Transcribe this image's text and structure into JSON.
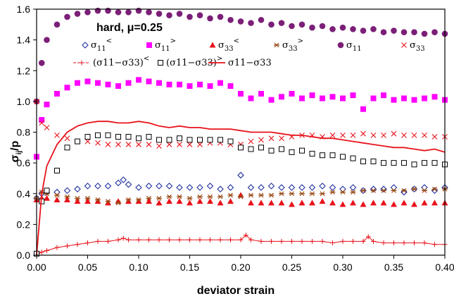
{
  "chart_data": {
    "type": "scatter",
    "annotation": "hard, μ=0.25",
    "xlabel": "deviator strain",
    "ylabel": "σij/p",
    "ylabel_main": "σ",
    "ylabel_sub": "ij",
    "ylabel_tail": "/p",
    "xlim": [
      0.0,
      0.4
    ],
    "ylim": [
      0.0,
      1.6
    ],
    "xticks": [
      "0.00",
      "0.05",
      "0.10",
      "0.15",
      "0.20",
      "0.25",
      "0.30",
      "0.35",
      "0.40"
    ],
    "yticks": [
      "0.0",
      "0.2",
      "0.4",
      "0.6",
      "0.8",
      "1.0",
      "1.2",
      "1.4",
      "1.6"
    ],
    "grid": false,
    "legend_placement": "top",
    "colors": {
      "blue": "#1f2f9f",
      "magenta": "#ff00ff",
      "red": "#e8121b",
      "brown": "#9a4a14",
      "purple": "#7b1f78",
      "black": "#000000"
    },
    "series": [
      {
        "name": "σ11<",
        "label_main": "σ",
        "label_sub": "11",
        "label_sup": "<",
        "marker": "diamond-open",
        "color": "blue",
        "x": [
          0.0,
          0.005,
          0.01,
          0.02,
          0.03,
          0.04,
          0.05,
          0.06,
          0.07,
          0.08,
          0.085,
          0.09,
          0.1,
          0.11,
          0.12,
          0.13,
          0.14,
          0.15,
          0.16,
          0.17,
          0.18,
          0.19,
          0.2,
          0.21,
          0.22,
          0.23,
          0.24,
          0.25,
          0.26,
          0.27,
          0.28,
          0.29,
          0.3,
          0.31,
          0.32,
          0.33,
          0.34,
          0.35,
          0.36,
          0.37,
          0.38,
          0.39,
          0.4
        ],
        "y": [
          0.37,
          0.4,
          0.41,
          0.41,
          0.42,
          0.43,
          0.45,
          0.45,
          0.45,
          0.47,
          0.49,
          0.46,
          0.44,
          0.45,
          0.45,
          0.45,
          0.44,
          0.44,
          0.44,
          0.45,
          0.43,
          0.44,
          0.52,
          0.44,
          0.44,
          0.45,
          0.44,
          0.44,
          0.44,
          0.44,
          0.45,
          0.44,
          0.43,
          0.44,
          0.42,
          0.43,
          0.43,
          0.44,
          0.41,
          0.43,
          0.44,
          0.42,
          0.44
        ]
      },
      {
        "name": "σ11>",
        "label_main": "σ",
        "label_sub": "11",
        "label_sup": ">",
        "marker": "square-filled",
        "color": "magenta",
        "x": [
          0.0,
          0.005,
          0.01,
          0.02,
          0.03,
          0.04,
          0.05,
          0.06,
          0.07,
          0.08,
          0.09,
          0.1,
          0.11,
          0.12,
          0.13,
          0.14,
          0.15,
          0.16,
          0.17,
          0.18,
          0.19,
          0.2,
          0.21,
          0.22,
          0.23,
          0.24,
          0.25,
          0.26,
          0.27,
          0.28,
          0.29,
          0.3,
          0.31,
          0.32,
          0.33,
          0.34,
          0.35,
          0.36,
          0.37,
          0.38,
          0.39,
          0.4
        ],
        "y": [
          0.64,
          0.88,
          0.98,
          1.05,
          1.09,
          1.12,
          1.13,
          1.12,
          1.11,
          1.1,
          1.12,
          1.14,
          1.13,
          1.12,
          1.11,
          1.11,
          1.1,
          1.11,
          1.1,
          1.12,
          1.1,
          1.05,
          1.02,
          1.05,
          1.01,
          1.03,
          1.05,
          1.02,
          1.04,
          1.02,
          1.03,
          1.02,
          1.04,
          0.95,
          1.02,
          1.04,
          1.01,
          1.02,
          1.01,
          1.02,
          1.03,
          1.01
        ]
      },
      {
        "name": "σ33<",
        "label_main": "σ",
        "label_sub": "33",
        "label_sup": "<",
        "marker": "triangle-filled",
        "color": "red",
        "x": [
          0.0,
          0.005,
          0.01,
          0.02,
          0.03,
          0.04,
          0.05,
          0.06,
          0.07,
          0.08,
          0.09,
          0.1,
          0.11,
          0.12,
          0.13,
          0.14,
          0.15,
          0.16,
          0.17,
          0.18,
          0.19,
          0.2,
          0.21,
          0.22,
          0.23,
          0.24,
          0.25,
          0.26,
          0.27,
          0.28,
          0.29,
          0.3,
          0.31,
          0.32,
          0.33,
          0.34,
          0.35,
          0.36,
          0.37,
          0.38,
          0.39,
          0.4
        ],
        "y": [
          0.36,
          0.37,
          0.37,
          0.36,
          0.36,
          0.35,
          0.35,
          0.35,
          0.34,
          0.35,
          0.35,
          0.35,
          0.35,
          0.34,
          0.35,
          0.35,
          0.34,
          0.35,
          0.35,
          0.34,
          0.35,
          0.39,
          0.34,
          0.34,
          0.34,
          0.34,
          0.33,
          0.34,
          0.34,
          0.35,
          0.34,
          0.33,
          0.34,
          0.33,
          0.34,
          0.34,
          0.33,
          0.34,
          0.33,
          0.34,
          0.34,
          0.34
        ]
      },
      {
        "name": "σ33>",
        "label_main": "σ",
        "label_sub": "33",
        "label_sup": ">",
        "marker": "asterisk",
        "color": "brown",
        "x": [
          0.0,
          0.005,
          0.01,
          0.02,
          0.03,
          0.04,
          0.05,
          0.06,
          0.07,
          0.08,
          0.09,
          0.1,
          0.11,
          0.12,
          0.13,
          0.14,
          0.15,
          0.16,
          0.17,
          0.18,
          0.19,
          0.2,
          0.21,
          0.22,
          0.23,
          0.24,
          0.25,
          0.26,
          0.27,
          0.28,
          0.29,
          0.3,
          0.31,
          0.32,
          0.33,
          0.34,
          0.35,
          0.36,
          0.37,
          0.38,
          0.39,
          0.4
        ],
        "y": [
          0.37,
          0.41,
          0.4,
          0.39,
          0.38,
          0.37,
          0.37,
          0.36,
          0.35,
          0.34,
          0.36,
          0.36,
          0.37,
          0.37,
          0.38,
          0.38,
          0.37,
          0.38,
          0.38,
          0.38,
          0.39,
          0.38,
          0.39,
          0.39,
          0.39,
          0.4,
          0.4,
          0.4,
          0.4,
          0.4,
          0.41,
          0.41,
          0.41,
          0.42,
          0.42,
          0.42,
          0.42,
          0.42,
          0.43,
          0.42,
          0.43,
          0.43
        ]
      },
      {
        "name": "σ11",
        "label_main": "σ",
        "label_sub": "11",
        "label_sup": "",
        "marker": "circle-filled",
        "color": "purple",
        "x": [
          0.0,
          0.005,
          0.01,
          0.02,
          0.03,
          0.04,
          0.05,
          0.06,
          0.07,
          0.08,
          0.09,
          0.1,
          0.11,
          0.12,
          0.13,
          0.14,
          0.15,
          0.16,
          0.17,
          0.18,
          0.19,
          0.2,
          0.21,
          0.22,
          0.23,
          0.24,
          0.25,
          0.26,
          0.27,
          0.28,
          0.29,
          0.3,
          0.31,
          0.32,
          0.33,
          0.34,
          0.35,
          0.36,
          0.37,
          0.38,
          0.39,
          0.4
        ],
        "y": [
          1.0,
          1.25,
          1.4,
          1.5,
          1.55,
          1.57,
          1.58,
          1.59,
          1.59,
          1.58,
          1.58,
          1.59,
          1.58,
          1.57,
          1.56,
          1.57,
          1.55,
          1.56,
          1.54,
          1.55,
          1.53,
          1.52,
          1.51,
          1.53,
          1.5,
          1.51,
          1.49,
          1.5,
          1.48,
          1.49,
          1.47,
          1.48,
          1.47,
          1.46,
          1.47,
          1.45,
          1.46,
          1.45,
          1.45,
          1.44,
          1.45,
          1.44
        ]
      },
      {
        "name": "σ33",
        "label_main": "σ",
        "label_sub": "33",
        "label_sup": "",
        "marker": "cross",
        "color": "red",
        "x": [
          0.0,
          0.005,
          0.01,
          0.02,
          0.03,
          0.04,
          0.05,
          0.06,
          0.07,
          0.08,
          0.09,
          0.1,
          0.11,
          0.12,
          0.13,
          0.14,
          0.15,
          0.16,
          0.17,
          0.18,
          0.19,
          0.2,
          0.21,
          0.22,
          0.23,
          0.24,
          0.25,
          0.26,
          0.27,
          0.28,
          0.29,
          0.3,
          0.31,
          0.32,
          0.33,
          0.34,
          0.35,
          0.36,
          0.37,
          0.38,
          0.39,
          0.4
        ],
        "y": [
          1.0,
          0.86,
          0.83,
          0.78,
          0.76,
          0.74,
          0.74,
          0.73,
          0.72,
          0.72,
          0.72,
          0.72,
          0.72,
          0.71,
          0.72,
          0.72,
          0.72,
          0.72,
          0.73,
          0.73,
          0.72,
          0.72,
          0.74,
          0.75,
          0.76,
          0.76,
          0.77,
          0.78,
          0.78,
          0.77,
          0.78,
          0.78,
          0.78,
          0.79,
          0.78,
          0.78,
          0.79,
          0.78,
          0.78,
          0.78,
          0.77,
          0.77
        ]
      },
      {
        "name": "(σ11−σ33)<",
        "label_main": "(σ11−σ33)",
        "label_sub": "",
        "label_sup": "<",
        "marker": "plus-line",
        "color": "red",
        "x": [
          0.0,
          0.005,
          0.01,
          0.02,
          0.03,
          0.04,
          0.05,
          0.06,
          0.07,
          0.08,
          0.085,
          0.09,
          0.1,
          0.11,
          0.12,
          0.13,
          0.14,
          0.15,
          0.16,
          0.17,
          0.18,
          0.19,
          0.2,
          0.205,
          0.21,
          0.22,
          0.23,
          0.24,
          0.25,
          0.26,
          0.27,
          0.28,
          0.29,
          0.3,
          0.31,
          0.32,
          0.325,
          0.33,
          0.34,
          0.35,
          0.36,
          0.37,
          0.38,
          0.39,
          0.4
        ],
        "y": [
          0.0,
          0.02,
          0.03,
          0.05,
          0.06,
          0.07,
          0.08,
          0.09,
          0.09,
          0.1,
          0.11,
          0.1,
          0.1,
          0.1,
          0.1,
          0.1,
          0.1,
          0.1,
          0.1,
          0.1,
          0.1,
          0.1,
          0.1,
          0.13,
          0.1,
          0.09,
          0.09,
          0.09,
          0.09,
          0.09,
          0.09,
          0.09,
          0.08,
          0.09,
          0.09,
          0.09,
          0.12,
          0.09,
          0.08,
          0.08,
          0.08,
          0.08,
          0.08,
          0.07,
          0.07
        ]
      },
      {
        "name": "(σ11−σ33)>",
        "label_main": "(σ11−σ33)",
        "label_sub": "",
        "label_sup": ">",
        "marker": "square-open",
        "color": "black",
        "x": [
          0.0,
          0.005,
          0.01,
          0.02,
          0.03,
          0.04,
          0.05,
          0.06,
          0.07,
          0.08,
          0.09,
          0.1,
          0.11,
          0.12,
          0.13,
          0.14,
          0.15,
          0.16,
          0.17,
          0.18,
          0.19,
          0.2,
          0.21,
          0.22,
          0.23,
          0.24,
          0.25,
          0.26,
          0.27,
          0.28,
          0.29,
          0.3,
          0.31,
          0.32,
          0.33,
          0.34,
          0.35,
          0.36,
          0.37,
          0.38,
          0.39,
          0.4
        ],
        "y": [
          0.01,
          0.35,
          0.42,
          0.55,
          0.7,
          0.74,
          0.77,
          0.78,
          0.78,
          0.77,
          0.77,
          0.76,
          0.77,
          0.75,
          0.75,
          0.76,
          0.75,
          0.75,
          0.75,
          0.75,
          0.74,
          0.7,
          0.69,
          0.7,
          0.68,
          0.69,
          0.67,
          0.68,
          0.66,
          0.65,
          0.65,
          0.64,
          0.63,
          0.61,
          0.61,
          0.6,
          0.6,
          0.6,
          0.59,
          0.6,
          0.6,
          0.59
        ]
      },
      {
        "name": "σ11−σ33",
        "label_main": "σ11−σ33",
        "label_sub": "",
        "label_sup": "",
        "marker": "line",
        "color": "red",
        "x": [
          0.0,
          0.005,
          0.01,
          0.02,
          0.03,
          0.04,
          0.05,
          0.06,
          0.07,
          0.08,
          0.09,
          0.1,
          0.11,
          0.12,
          0.13,
          0.14,
          0.15,
          0.16,
          0.17,
          0.18,
          0.19,
          0.2,
          0.21,
          0.22,
          0.23,
          0.24,
          0.25,
          0.26,
          0.27,
          0.28,
          0.29,
          0.3,
          0.31,
          0.32,
          0.33,
          0.34,
          0.35,
          0.36,
          0.37,
          0.38,
          0.39,
          0.4
        ],
        "y": [
          0.0,
          0.4,
          0.58,
          0.72,
          0.8,
          0.84,
          0.86,
          0.87,
          0.87,
          0.86,
          0.86,
          0.87,
          0.86,
          0.84,
          0.83,
          0.84,
          0.83,
          0.83,
          0.82,
          0.82,
          0.82,
          0.81,
          0.8,
          0.8,
          0.8,
          0.79,
          0.78,
          0.78,
          0.77,
          0.76,
          0.76,
          0.75,
          0.74,
          0.73,
          0.72,
          0.71,
          0.7,
          0.7,
          0.69,
          0.68,
          0.69,
          0.67
        ]
      }
    ]
  }
}
